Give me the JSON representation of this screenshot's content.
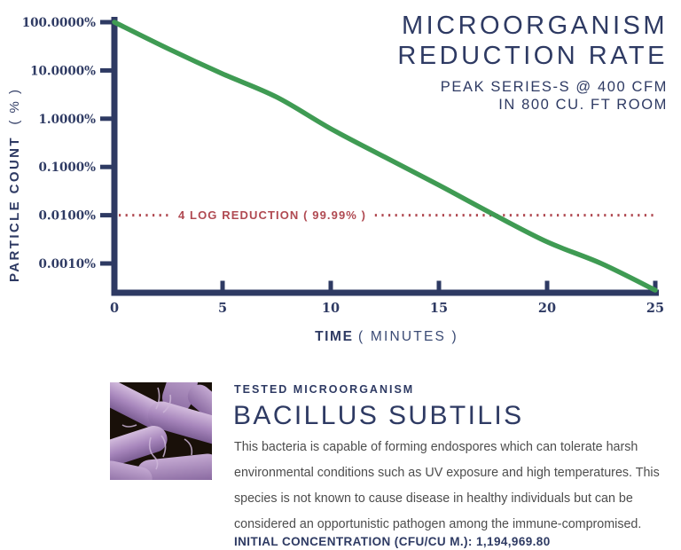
{
  "colors": {
    "navy": "#2e3a63",
    "green": "#3f9b53",
    "red": "#b04a52",
    "body_text": "#4d4d4d"
  },
  "chart": {
    "title": [
      "MICROORGANISM",
      "REDUCTION RATE"
    ],
    "subtitle": [
      "PEAK SERIES-S @ 400 CFM",
      "IN 800 CU. FT ROOM"
    ],
    "y_axis_title": "PARTICLE COUNT",
    "y_axis_title_unit": "( % )",
    "x_axis_title": "TIME",
    "x_axis_title_unit": "( MINUTES )",
    "threshold_label": "4 LOG REDUCTION ( 99.99% )"
  },
  "chart_data": {
    "type": "line",
    "title": "MICROORGANISM REDUCTION RATE",
    "subtitle": "PEAK SERIES-S @ 400 CFM IN 800 CU. FT ROOM",
    "xlabel": "TIME ( MINUTES )",
    "ylabel": "PARTICLE COUNT ( % )",
    "x_scale": "linear",
    "y_scale": "log",
    "xlim": [
      0,
      25
    ],
    "ylim_percent": [
      0.00028,
      100
    ],
    "x_ticks": [
      0,
      5,
      10,
      15,
      20,
      25
    ],
    "y_tick_labels": [
      "100.0000%",
      "10.0000%",
      "1.0000%",
      "0.1000%",
      "0.0100%",
      "0.0010%"
    ],
    "y_tick_values_percent": [
      100,
      10,
      1,
      0.1,
      0.01,
      0.001
    ],
    "grid": false,
    "legend": "none",
    "series": [
      {
        "name": "PEAK Series-S particle count",
        "color": "#3f9b53",
        "points_minutes_percent": [
          [
            0,
            100
          ],
          [
            2.5,
            28
          ],
          [
            5,
            8.5
          ],
          [
            7.5,
            2.8
          ],
          [
            10,
            0.62
          ],
          [
            12.5,
            0.16
          ],
          [
            15,
            0.042
          ],
          [
            17.5,
            0.0105
          ],
          [
            20,
            0.0028
          ],
          [
            22.5,
            0.001
          ],
          [
            25,
            0.00028
          ]
        ]
      }
    ],
    "threshold_line": {
      "value_percent": 0.01,
      "label": "4 LOG REDUCTION ( 99.99% )",
      "color": "#b04a52",
      "style": "dotted"
    }
  },
  "organism": {
    "eyebrow": "TESTED MICROORGANISM",
    "name": "BACILLUS SUBTILIS",
    "description": "This bacteria is capable of forming endospores which can tolerate harsh environmental conditions such as UV exposure and high temperatures. This species is not known to cause disease in healthy individuals but can be considered an opportunistic pathogen among the immune-compromised.",
    "initial_concentration_label": "INITIAL CONCENTRATION (CFU/CU M.): 1,194,969.80"
  }
}
